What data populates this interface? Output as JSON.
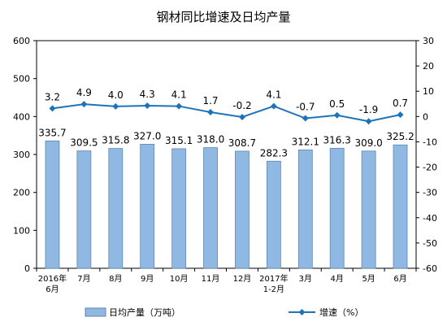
{
  "chart_data": {
    "type": "bar+line",
    "title": "钢材同比增速及日均产量",
    "categories": [
      [
        "2016年",
        "6月"
      ],
      [
        "7月"
      ],
      [
        "8月"
      ],
      [
        "9月"
      ],
      [
        "10月"
      ],
      [
        "11月"
      ],
      [
        "12月"
      ],
      [
        "2017年",
        "1-2月"
      ],
      [
        "3月"
      ],
      [
        "4月"
      ],
      [
        "5月"
      ],
      [
        "6月"
      ]
    ],
    "left_axis": {
      "min": 0,
      "max": 600,
      "ticks": [
        0,
        100,
        200,
        300,
        400,
        500,
        600
      ]
    },
    "right_axis": {
      "min": -60,
      "max": 30,
      "ticks": [
        -60,
        -50,
        -40,
        -30,
        -20,
        -10,
        0,
        10,
        20,
        30
      ]
    },
    "series": [
      {
        "name": "日均产量（万吨）",
        "type": "bar",
        "axis": "left",
        "color": "#8fb9e3",
        "values": [
          335.7,
          309.5,
          315.8,
          327.0,
          315.1,
          318.0,
          308.7,
          282.3,
          312.1,
          316.3,
          309.0,
          325.2
        ],
        "labels": [
          "335.7",
          "309.5",
          "315.8",
          "327.0",
          "315.1",
          "318.0",
          "308.7",
          "282.3",
          "312.1",
          "316.3",
          "309.0",
          "325.2"
        ]
      },
      {
        "name": "增速（%）",
        "type": "line",
        "axis": "right",
        "color": "#1f73b8",
        "values": [
          3.2,
          4.9,
          4.0,
          4.3,
          4.1,
          1.7,
          -0.2,
          4.1,
          -0.7,
          0.5,
          -1.9,
          0.7
        ],
        "labels": [
          "3.2",
          "4.9",
          "4.0",
          "4.3",
          "4.1",
          "1.7",
          "-0.2",
          "4.1",
          "-0.7",
          "0.5",
          "-1.9",
          "0.7"
        ]
      }
    ],
    "grid": false,
    "legend_position": "bottom"
  }
}
